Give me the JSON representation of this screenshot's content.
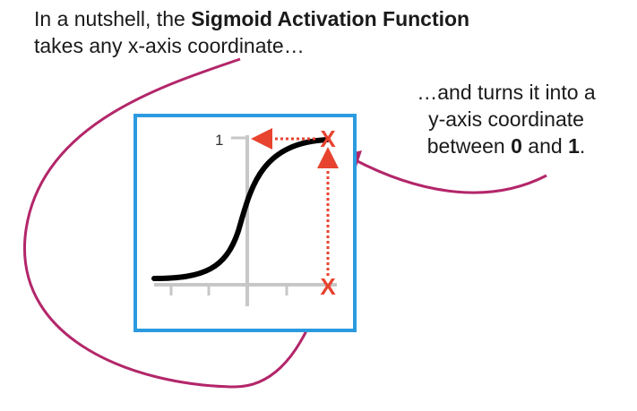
{
  "caption_top": {
    "part1": "In a nutshell, the ",
    "bold": "Sigmoid Activation Function",
    "part2": " takes any x-axis coordinate…"
  },
  "caption_right": {
    "line1": "…and turns it into a",
    "line2": "y-axis coordinate",
    "line3_pre": "between ",
    "zero": "0",
    "and": " and ",
    "one": "1",
    "period": "."
  },
  "graph": {
    "y_tick_label": "1",
    "marker_symbol": "X"
  },
  "colors": {
    "frame": "#2b9be0",
    "curve": "#000000",
    "marker": "#e8432f",
    "arrow": "#b3266a"
  }
}
